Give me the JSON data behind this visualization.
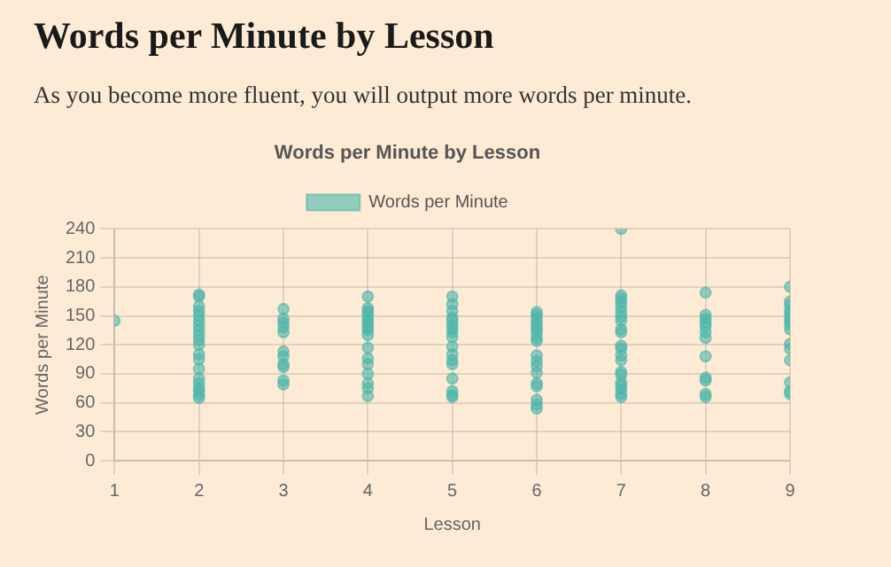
{
  "chart_data": {
    "type": "scatter",
    "title": "Words per Minute by Lesson",
    "subtitle": "As you become more fluent, you will output more words per minute.",
    "annotations": [
      "Words per Minute by Lesson"
    ],
    "xlabel": "Lesson",
    "ylabel": "Words per Minute",
    "xlim": [
      1,
      9
    ],
    "xticks": [
      1,
      2,
      3,
      4,
      5,
      6,
      7,
      8,
      9
    ],
    "ylim": [
      0,
      240
    ],
    "yticks": [
      0,
      30,
      60,
      90,
      120,
      150,
      180,
      210,
      240
    ],
    "grid": true,
    "legend": "top",
    "marker": "circle",
    "series": [
      {
        "name": "Words per Minute",
        "color": "#4db6ac",
        "x": [
          1,
          2,
          2,
          2,
          2,
          2,
          2,
          2,
          2,
          2,
          2,
          2,
          2,
          2,
          2,
          2,
          2,
          2,
          2,
          2,
          2,
          3,
          3,
          3,
          3,
          3,
          3,
          3,
          3,
          3,
          3,
          3,
          4,
          4,
          4,
          4,
          4,
          4,
          4,
          4,
          4,
          4,
          4,
          4,
          4,
          4,
          4,
          4,
          4,
          5,
          5,
          5,
          5,
          5,
          5,
          5,
          5,
          5,
          5,
          5,
          5,
          5,
          5,
          5,
          5,
          5,
          6,
          6,
          6,
          6,
          6,
          6,
          6,
          6,
          6,
          6,
          6,
          6,
          6,
          6,
          6,
          6,
          6,
          6,
          7,
          7,
          7,
          7,
          7,
          7,
          7,
          7,
          7,
          7,
          7,
          7,
          7,
          7,
          7,
          7,
          7,
          7,
          7,
          7,
          7,
          8,
          8,
          8,
          8,
          8,
          8,
          8,
          8,
          8,
          8,
          8,
          8,
          9,
          9,
          9,
          9,
          9,
          9,
          9,
          9,
          9,
          9,
          9,
          9,
          9,
          9,
          9
        ],
        "values": [
          145,
          172,
          170,
          160,
          155,
          150,
          145,
          140,
          135,
          130,
          125,
          120,
          110,
          105,
          95,
          85,
          80,
          75,
          72,
          68,
          65,
          157,
          147,
          143,
          138,
          133,
          113,
          108,
          100,
          97,
          83,
          79,
          170,
          158,
          155,
          152,
          148,
          145,
          142,
          138,
          135,
          130,
          117,
          106,
          100,
          90,
          80,
          75,
          67,
          170,
          162,
          155,
          148,
          145,
          140,
          137,
          133,
          128,
          118,
          110,
          104,
          100,
          85,
          72,
          68,
          66,
          154,
          151,
          147,
          143,
          139,
          136,
          132,
          127,
          124,
          109,
          103,
          98,
          91,
          80,
          77,
          63,
          58,
          54,
          240,
          171,
          168,
          164,
          159,
          154,
          149,
          145,
          136,
          133,
          119,
          116,
          109,
          104,
          92,
          89,
          81,
          78,
          74,
          69,
          66,
          174,
          151,
          147,
          143,
          139,
          133,
          127,
          108,
          86,
          83,
          69,
          66,
          180,
          165,
          161,
          156,
          152,
          148,
          144,
          141,
          136,
          121,
          116,
          104,
          81,
          72,
          69
        ]
      }
    ]
  }
}
